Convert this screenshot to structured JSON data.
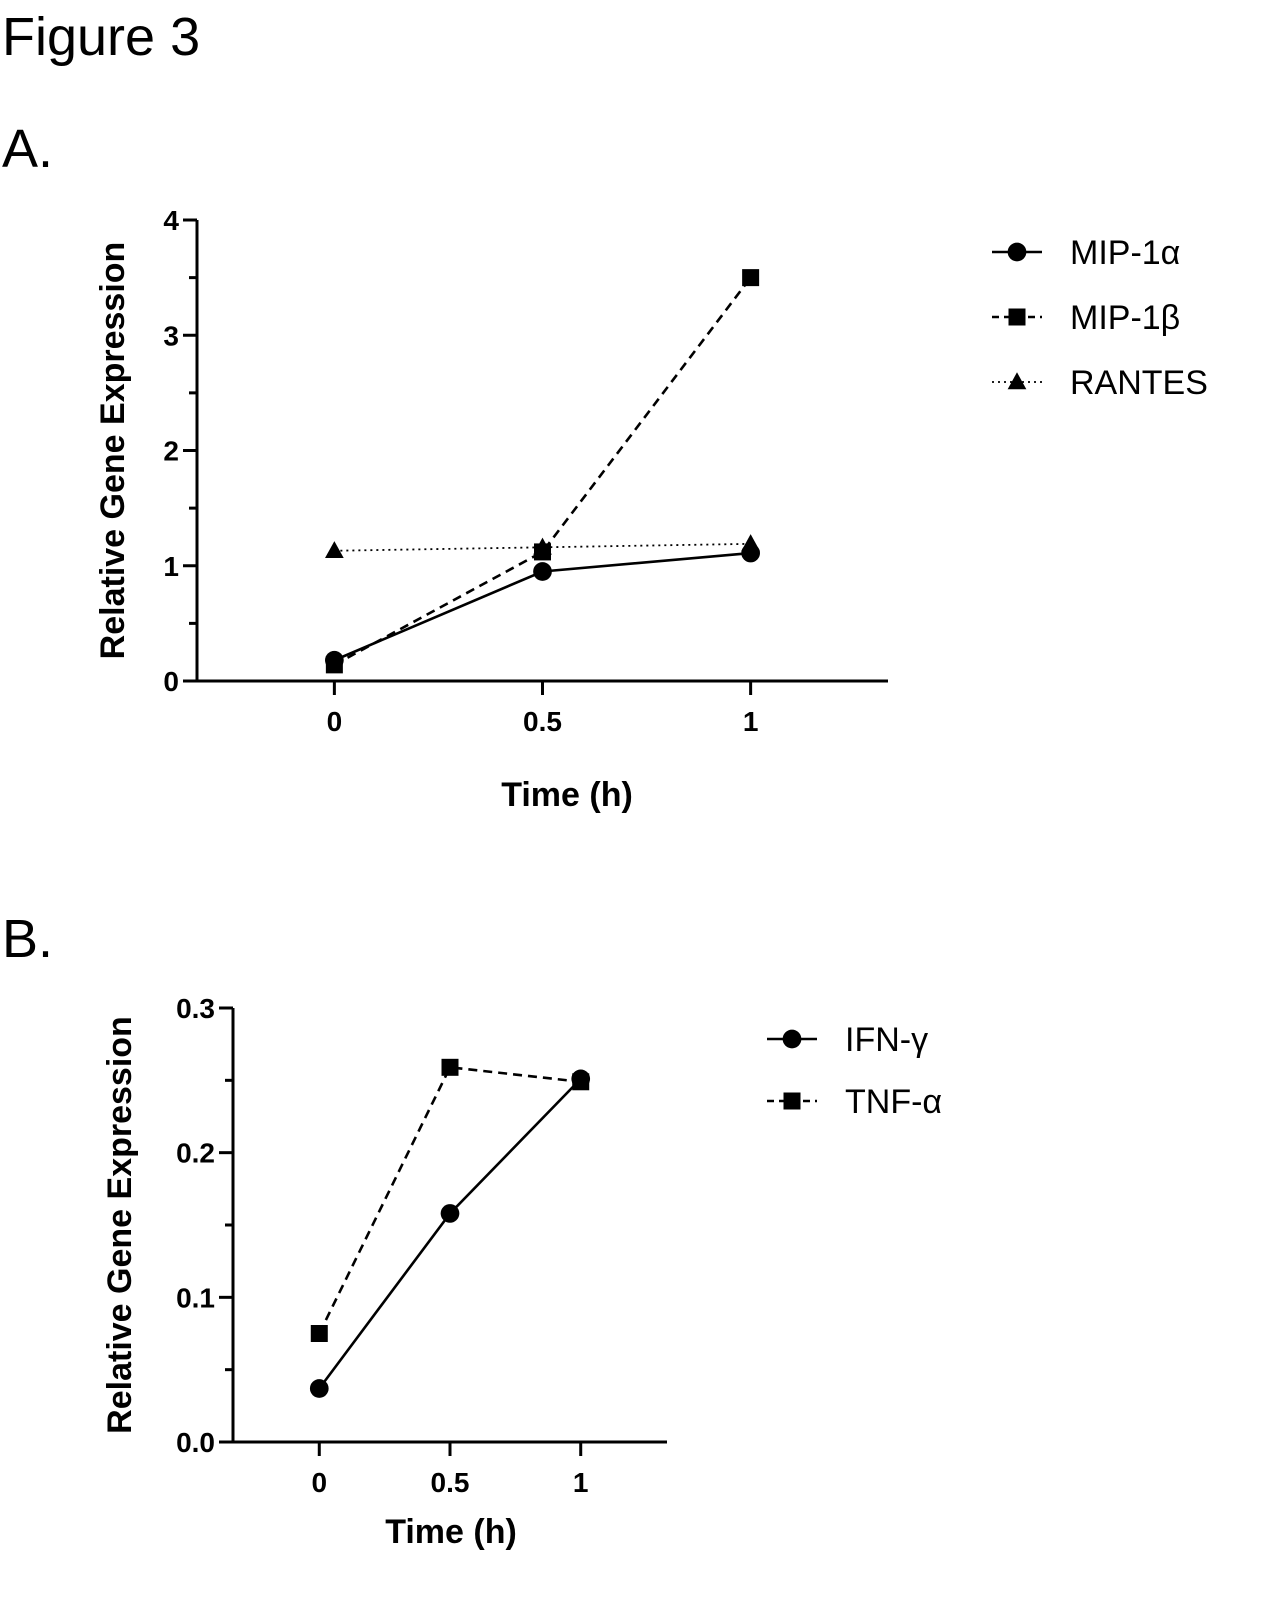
{
  "figure_title": "Figure 3",
  "panels": {
    "a_label": "A.",
    "b_label": "B."
  },
  "chart_data": [
    {
      "type": "line",
      "xlabel": "Time (h)",
      "ylabel": "Relative Gene Expression",
      "x": [
        0,
        0.5,
        1
      ],
      "x_tick_labels": [
        "0",
        "0.5",
        "1"
      ],
      "xlim": [
        -0.33,
        1.33
      ],
      "ylim": [
        0,
        4
      ],
      "y_ticks": [
        0,
        1,
        2,
        3,
        4
      ],
      "y_tick_labels": [
        "0",
        "1",
        "2",
        "3",
        "4"
      ],
      "legend_position": "right",
      "series": [
        {
          "name": "MIP-1α",
          "values": [
            0.18,
            0.95,
            1.11
          ],
          "marker": "circle",
          "line": "solid"
        },
        {
          "name": "MIP-1β",
          "values": [
            0.14,
            1.12,
            3.5
          ],
          "marker": "square",
          "line": "dashed"
        },
        {
          "name": "RANTES",
          "values": [
            1.13,
            1.16,
            1.19
          ],
          "marker": "triangle",
          "line": "dotted"
        }
      ]
    },
    {
      "type": "line",
      "xlabel": "Time (h)",
      "ylabel": "Relative Gene Expression",
      "x": [
        0,
        0.5,
        1
      ],
      "x_tick_labels": [
        "0",
        "0.5",
        "1"
      ],
      "xlim": [
        -0.33,
        1.33
      ],
      "ylim": [
        0,
        0.3
      ],
      "y_ticks": [
        0,
        0.1,
        0.2,
        0.3
      ],
      "y_tick_labels": [
        "0.0",
        "0.1",
        "0.2",
        "0.3"
      ],
      "legend_position": "right",
      "series": [
        {
          "name": "IFN-γ",
          "values": [
            0.037,
            0.158,
            0.251
          ],
          "marker": "circle",
          "line": "solid"
        },
        {
          "name": "TNF-α",
          "values": [
            0.075,
            0.259,
            0.249
          ],
          "marker": "square",
          "line": "dashed"
        }
      ]
    }
  ]
}
